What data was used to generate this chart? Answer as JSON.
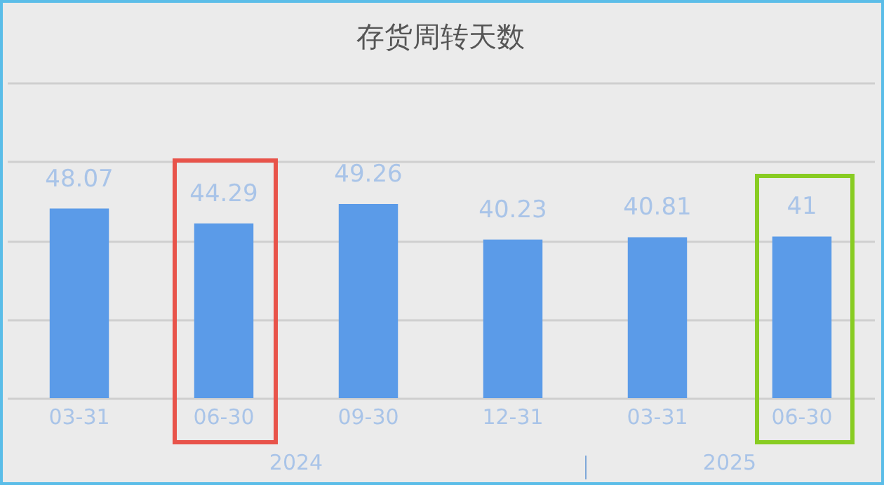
{
  "chart_data": {
    "type": "bar",
    "title": "存货周转天数",
    "categories": [
      "03-31",
      "06-30",
      "09-30",
      "12-31",
      "03-31",
      "06-30"
    ],
    "values": [
      48.07,
      44.29,
      49.26,
      40.23,
      40.81,
      41
    ],
    "color": "#5b9be8",
    "ylim": [
      0,
      80
    ],
    "yticks": [
      {
        "value": 0,
        "label": null
      },
      {
        "value": 20,
        "label": null
      },
      {
        "value": 40,
        "label": null
      },
      {
        "value": 60,
        "label": null
      },
      {
        "value": 80,
        "label": null
      }
    ],
    "tick_labels": "x",
    "grid": "y",
    "data_labels": true,
    "annotations": [
      "2024",
      "2025"
    ]
  }
}
